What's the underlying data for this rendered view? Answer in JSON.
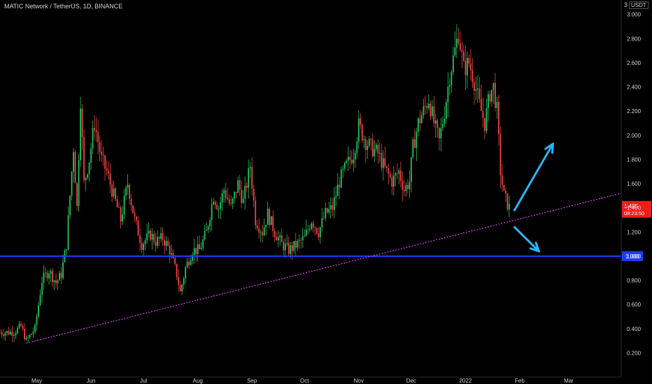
{
  "header": {
    "title": "MATIC Network / TetherUS, 1D, BINANCE",
    "currency_prefix": "3",
    "currency": "USDT"
  },
  "colors": {
    "background": "#000000",
    "up": "#26a69a",
    "down": "#ef5350",
    "candle_up": "#22c55e",
    "candle_down": "#ef4444",
    "horizontal_line": "#1e3bff",
    "trendline": "#e040fb",
    "arrows": "#29b6f6",
    "axis_text": "#d1d4dc",
    "price_label_bg": "#ef1c1c",
    "level_label_bg": "#1e3bff"
  },
  "chart_data": {
    "type": "candlestick",
    "title": "MATIC Network / TetherUS, 1D, BINANCE",
    "ylim": [
      0.0,
      3.05
    ],
    "y_ticks": [
      0.2,
      0.4,
      0.6,
      0.8,
      1.0,
      1.2,
      1.4,
      1.6,
      1.8,
      2.0,
      2.2,
      2.4,
      2.6,
      2.8,
      3.0
    ],
    "y_tick_labels": [
      "0.200",
      "0.400",
      "0.600",
      "0.800",
      "1.000",
      "1.200",
      "1.400",
      "1.600",
      "1.800",
      "2.000",
      "2.200",
      "2.400",
      "2.600",
      "2.800",
      "3.000"
    ],
    "x_range": [
      "2021-04-10",
      "2022-03-31"
    ],
    "x_ticks": [
      {
        "date": "2021-05-01",
        "label": "May"
      },
      {
        "date": "2021-06-01",
        "label": "Jun"
      },
      {
        "date": "2021-07-01",
        "label": "Jul"
      },
      {
        "date": "2021-08-01",
        "label": "Aug"
      },
      {
        "date": "2021-09-01",
        "label": "Sep"
      },
      {
        "date": "2021-10-01",
        "label": "Oct"
      },
      {
        "date": "2021-11-01",
        "label": "Nov"
      },
      {
        "date": "2021-12-01",
        "label": "Dec"
      },
      {
        "date": "2022-01-01",
        "label": "2022"
      },
      {
        "date": "2022-02-01",
        "label": "Feb"
      },
      {
        "date": "2022-03-01",
        "label": "Mar"
      }
    ],
    "price_path": [
      [
        "2021-04-10",
        0.37
      ],
      [
        "2021-04-18",
        0.37
      ],
      [
        "2021-04-22",
        0.42
      ],
      [
        "2021-04-25",
        0.3
      ],
      [
        "2021-04-30",
        0.4
      ],
      [
        "2021-05-04",
        0.8
      ],
      [
        "2021-05-08",
        0.88
      ],
      [
        "2021-05-12",
        0.78
      ],
      [
        "2021-05-15",
        0.85
      ],
      [
        "2021-05-18",
        1.1
      ],
      [
        "2021-05-20",
        1.5
      ],
      [
        "2021-05-22",
        1.9
      ],
      [
        "2021-05-24",
        1.4
      ],
      [
        "2021-05-26",
        2.3
      ],
      [
        "2021-05-28",
        1.6
      ],
      [
        "2021-05-31",
        1.8
      ],
      [
        "2021-06-03",
        2.1
      ],
      [
        "2021-06-07",
        1.8
      ],
      [
        "2021-06-10",
        1.7
      ],
      [
        "2021-06-14",
        1.5
      ],
      [
        "2021-06-18",
        1.3
      ],
      [
        "2021-06-22",
        1.6
      ],
      [
        "2021-06-26",
        1.3
      ],
      [
        "2021-06-30",
        1.1
      ],
      [
        "2021-07-05",
        1.18
      ],
      [
        "2021-07-08",
        1.12
      ],
      [
        "2021-07-12",
        1.15
      ],
      [
        "2021-07-16",
        1.05
      ],
      [
        "2021-07-20",
        0.85
      ],
      [
        "2021-07-22",
        0.7
      ],
      [
        "2021-07-25",
        0.9
      ],
      [
        "2021-07-29",
        1.05
      ],
      [
        "2021-08-02",
        1.05
      ],
      [
        "2021-08-06",
        1.2
      ],
      [
        "2021-08-10",
        1.5
      ],
      [
        "2021-08-13",
        1.4
      ],
      [
        "2021-08-16",
        1.55
      ],
      [
        "2021-08-20",
        1.4
      ],
      [
        "2021-08-24",
        1.6
      ],
      [
        "2021-08-27",
        1.45
      ],
      [
        "2021-08-31",
        1.75
      ],
      [
        "2021-09-03",
        1.3
      ],
      [
        "2021-09-07",
        1.2
      ],
      [
        "2021-09-10",
        1.35
      ],
      [
        "2021-09-14",
        1.2
      ],
      [
        "2021-09-18",
        1.1
      ],
      [
        "2021-09-22",
        1.05
      ],
      [
        "2021-09-27",
        1.1
      ],
      [
        "2021-10-01",
        1.15
      ],
      [
        "2021-10-05",
        1.3
      ],
      [
        "2021-10-09",
        1.2
      ],
      [
        "2021-10-13",
        1.35
      ],
      [
        "2021-10-17",
        1.4
      ],
      [
        "2021-10-21",
        1.62
      ],
      [
        "2021-10-25",
        1.75
      ],
      [
        "2021-10-29",
        1.85
      ],
      [
        "2021-11-01",
        2.08
      ],
      [
        "2021-11-05",
        1.95
      ],
      [
        "2021-11-08",
        1.9
      ],
      [
        "2021-11-12",
        1.85
      ],
      [
        "2021-11-16",
        1.72
      ],
      [
        "2021-11-20",
        1.62
      ],
      [
        "2021-11-24",
        1.7
      ],
      [
        "2021-11-27",
        1.55
      ],
      [
        "2021-11-30",
        1.62
      ],
      [
        "2021-12-02",
        1.9
      ],
      [
        "2021-12-05",
        2.1
      ],
      [
        "2021-12-08",
        2.2
      ],
      [
        "2021-12-11",
        2.3
      ],
      [
        "2021-12-14",
        2.1
      ],
      [
        "2021-12-17",
        1.95
      ],
      [
        "2021-12-20",
        2.2
      ],
      [
        "2021-12-23",
        2.5
      ],
      [
        "2021-12-26",
        2.7
      ],
      [
        "2021-12-28",
        2.85
      ],
      [
        "2021-12-31",
        2.55
      ],
      [
        "2022-01-03",
        2.6
      ],
      [
        "2022-01-06",
        2.45
      ],
      [
        "2022-01-09",
        2.25
      ],
      [
        "2022-01-12",
        2.1
      ],
      [
        "2022-01-15",
        2.35
      ],
      [
        "2022-01-17",
        2.4
      ],
      [
        "2022-01-19",
        2.2
      ],
      [
        "2022-01-21",
        1.7
      ],
      [
        "2022-01-23",
        1.5
      ],
      [
        "2022-01-26",
        1.4
      ]
    ],
    "horizontal_line": {
      "value": 1.0,
      "label": "1.000"
    },
    "trendline": {
      "points": [
        [
          "2021-04-25",
          0.28
        ],
        [
          "2022-03-31",
          1.52
        ]
      ],
      "style": "dotted"
    },
    "arrows": [
      {
        "from": [
          "2022-01-29",
          1.38
        ],
        "to": [
          "2022-02-20",
          1.93
        ],
        "direction": "up"
      },
      {
        "from": [
          "2022-01-29",
          1.24
        ],
        "to": [
          "2022-02-12",
          1.04
        ],
        "direction": "down"
      }
    ],
    "last_price": {
      "value": 1.405,
      "label": "1.405",
      "countdown": "08:23:50"
    },
    "grid": false,
    "legend": "none"
  }
}
